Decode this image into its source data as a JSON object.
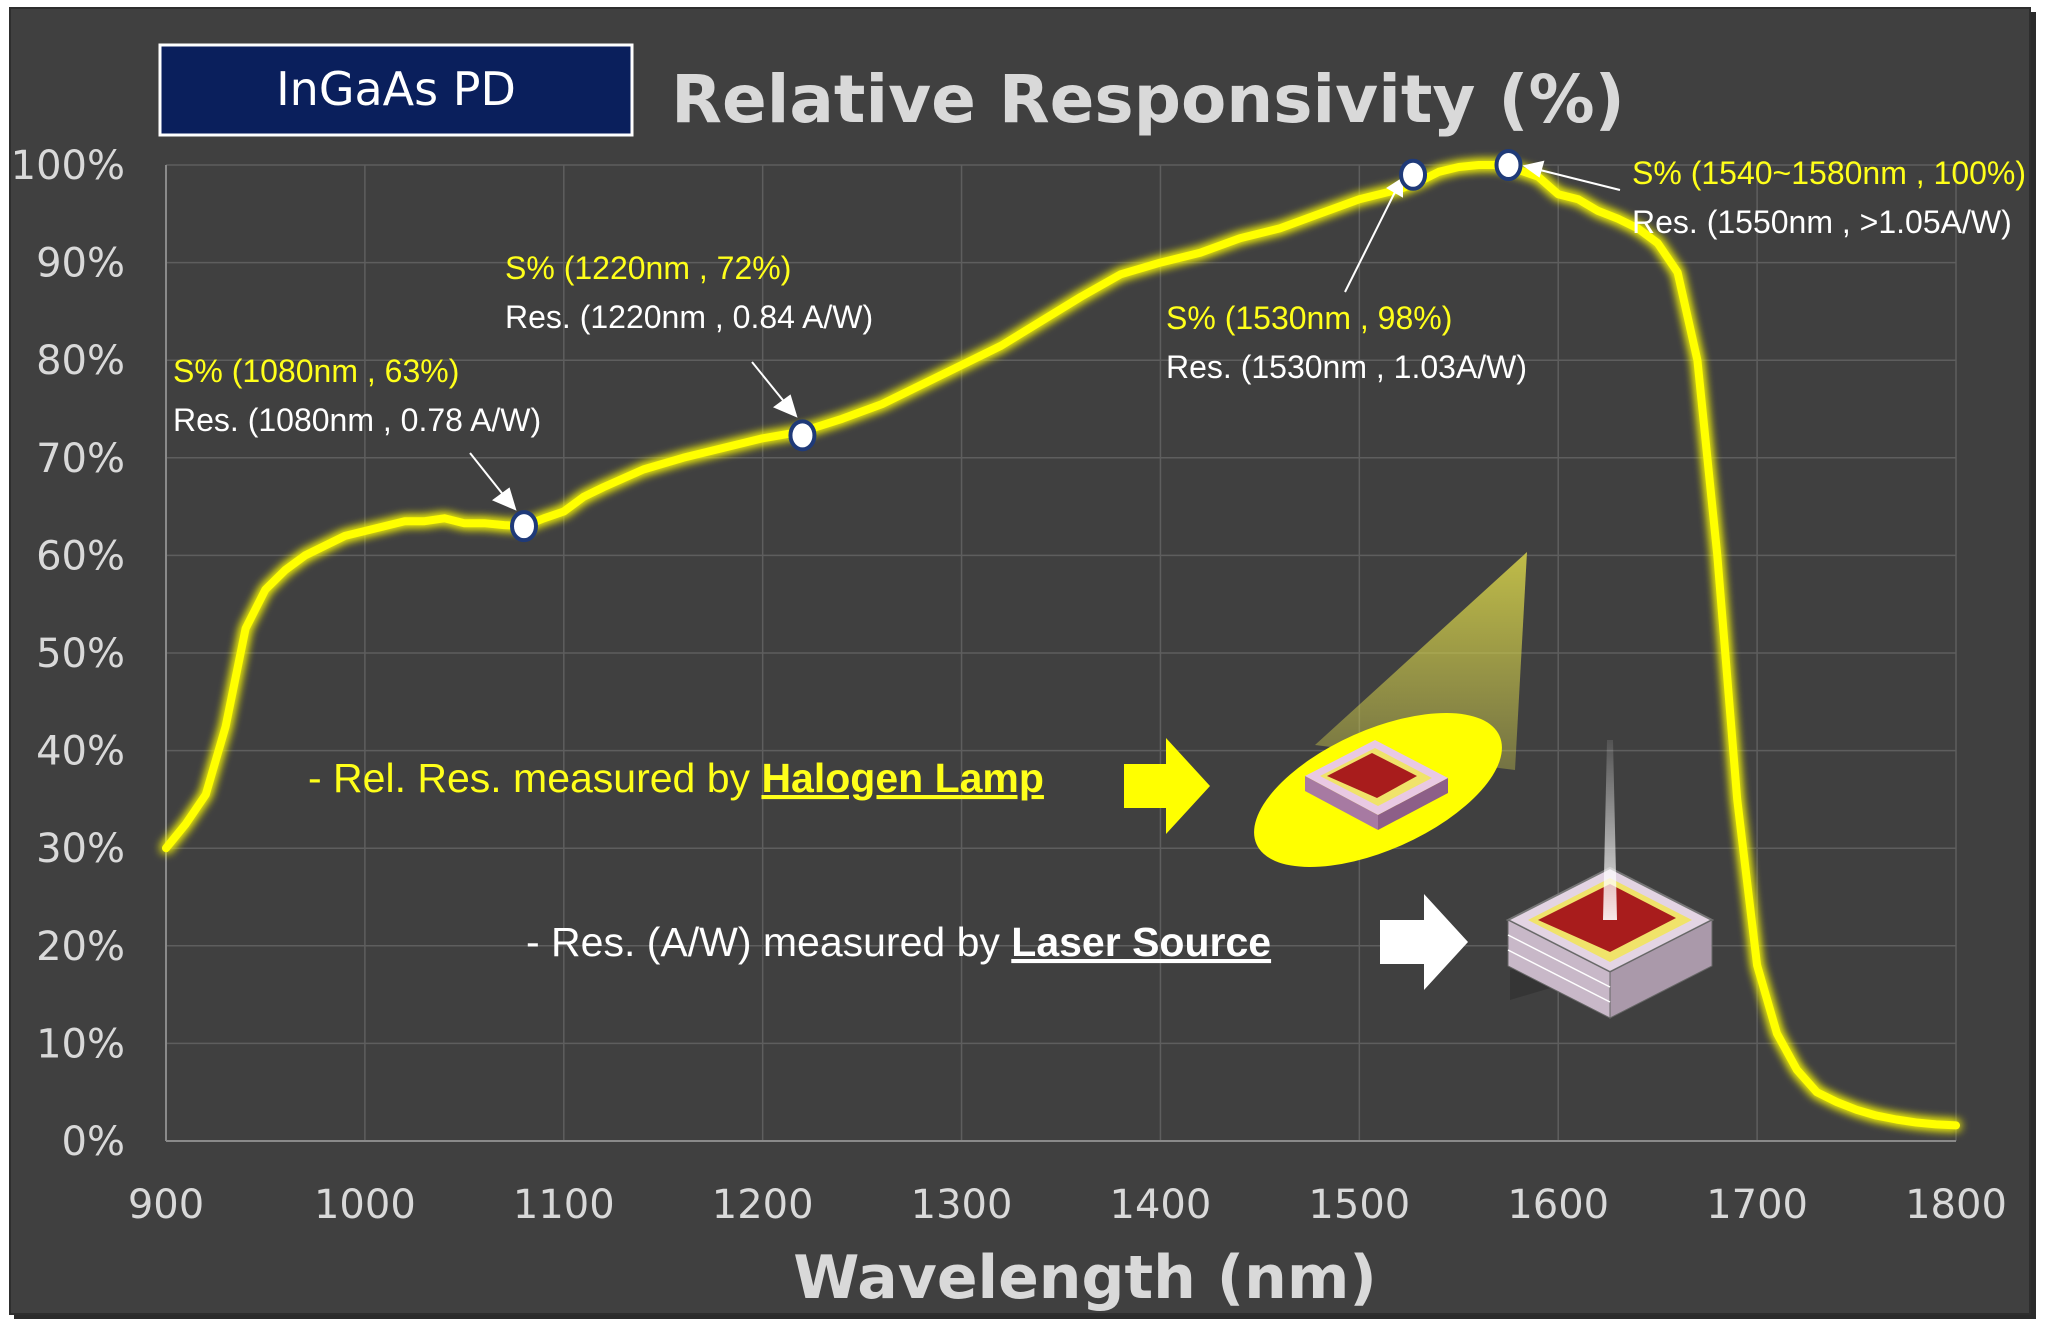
{
  "chart_data": {
    "type": "line",
    "title": "Relative Responsivity (%)",
    "xlabel": "Wavelength (nm)",
    "ylabel": "",
    "xlim": [
      900,
      1800
    ],
    "ylim": [
      0,
      100
    ],
    "x_ticks": [
      "900",
      "1000",
      "1100",
      "1200",
      "1300",
      "1400",
      "1500",
      "1600",
      "1700",
      "1800"
    ],
    "y_ticks": [
      "0%",
      "10%",
      "20%",
      "30%",
      "40%",
      "50%",
      "60%",
      "70%",
      "80%",
      "90%",
      "100%"
    ],
    "grid": true,
    "series": [
      {
        "name": "Relative Responsivity",
        "color": "#ffff00",
        "x": [
          900,
          910,
          920,
          930,
          940,
          950,
          960,
          970,
          980,
          990,
          1000,
          1010,
          1020,
          1030,
          1040,
          1050,
          1060,
          1070,
          1080,
          1090,
          1100,
          1110,
          1120,
          1140,
          1160,
          1180,
          1200,
          1220,
          1240,
          1260,
          1280,
          1300,
          1320,
          1340,
          1360,
          1380,
          1400,
          1420,
          1440,
          1460,
          1480,
          1500,
          1520,
          1530,
          1540,
          1550,
          1560,
          1570,
          1580,
          1590,
          1600,
          1610,
          1620,
          1630,
          1640,
          1650,
          1660,
          1670,
          1680,
          1690,
          1700,
          1710,
          1720,
          1730,
          1740,
          1750,
          1760,
          1770,
          1780,
          1790,
          1800
        ],
        "values": [
          30,
          32.5,
          35.5,
          42.5,
          52.5,
          56.5,
          58.5,
          60,
          61,
          62,
          62.5,
          63,
          63.5,
          63.5,
          63.8,
          63.3,
          63.3,
          63.1,
          63,
          63.8,
          64.5,
          66,
          67,
          68.8,
          70,
          71,
          72,
          72.7,
          74,
          75.5,
          77.5,
          79.5,
          81.5,
          84,
          86.5,
          88.8,
          90,
          91,
          92.5,
          93.5,
          95,
          96.5,
          97.5,
          98.3,
          99.3,
          99.8,
          100,
          100,
          99.5,
          98.8,
          97,
          96.5,
          95.3,
          94.5,
          93.5,
          92,
          89,
          80,
          60,
          35,
          18,
          11,
          7.3,
          5,
          4,
          3.2,
          2.6,
          2.2,
          1.9,
          1.7,
          1.6
        ]
      }
    ],
    "markers": [
      {
        "x": 1080,
        "y": 63
      },
      {
        "x": 1220,
        "y": 72.3
      },
      {
        "x": 1527,
        "y": 99
      },
      {
        "x": 1575,
        "y": 100
      }
    ],
    "annotations": [
      {
        "id": "a1080",
        "spec": "S% (1080nm , 63%)",
        "res": "Res. (1080nm , 0.78 A/W)"
      },
      {
        "id": "a1220",
        "spec": "S% (1220nm , 72%)",
        "res": "Res. (1220nm , 0.84 A/W)"
      },
      {
        "id": "a1530",
        "spec": "S% (1530nm , 98%)",
        "res": "Res. (1530nm , 1.03A/W)"
      },
      {
        "id": "a1550",
        "spec": "S% (1540~1580nm , 100%)",
        "res": "Res. (1550nm , >1.05A/W)"
      }
    ],
    "badge": "InGaAs PD",
    "notes": [
      {
        "prefix": "- Rel. Res. measured by ",
        "emphasis": "Halogen Lamp"
      },
      {
        "prefix": "- Res. (A/W) measured by ",
        "emphasis": "Laser Source"
      }
    ]
  },
  "colors": {
    "background": "#404040",
    "line": "#ffff00",
    "grid": "#5e5e5e",
    "badge_fill": "#0a1f5c",
    "annotation_yellow": "#ffff1a"
  }
}
